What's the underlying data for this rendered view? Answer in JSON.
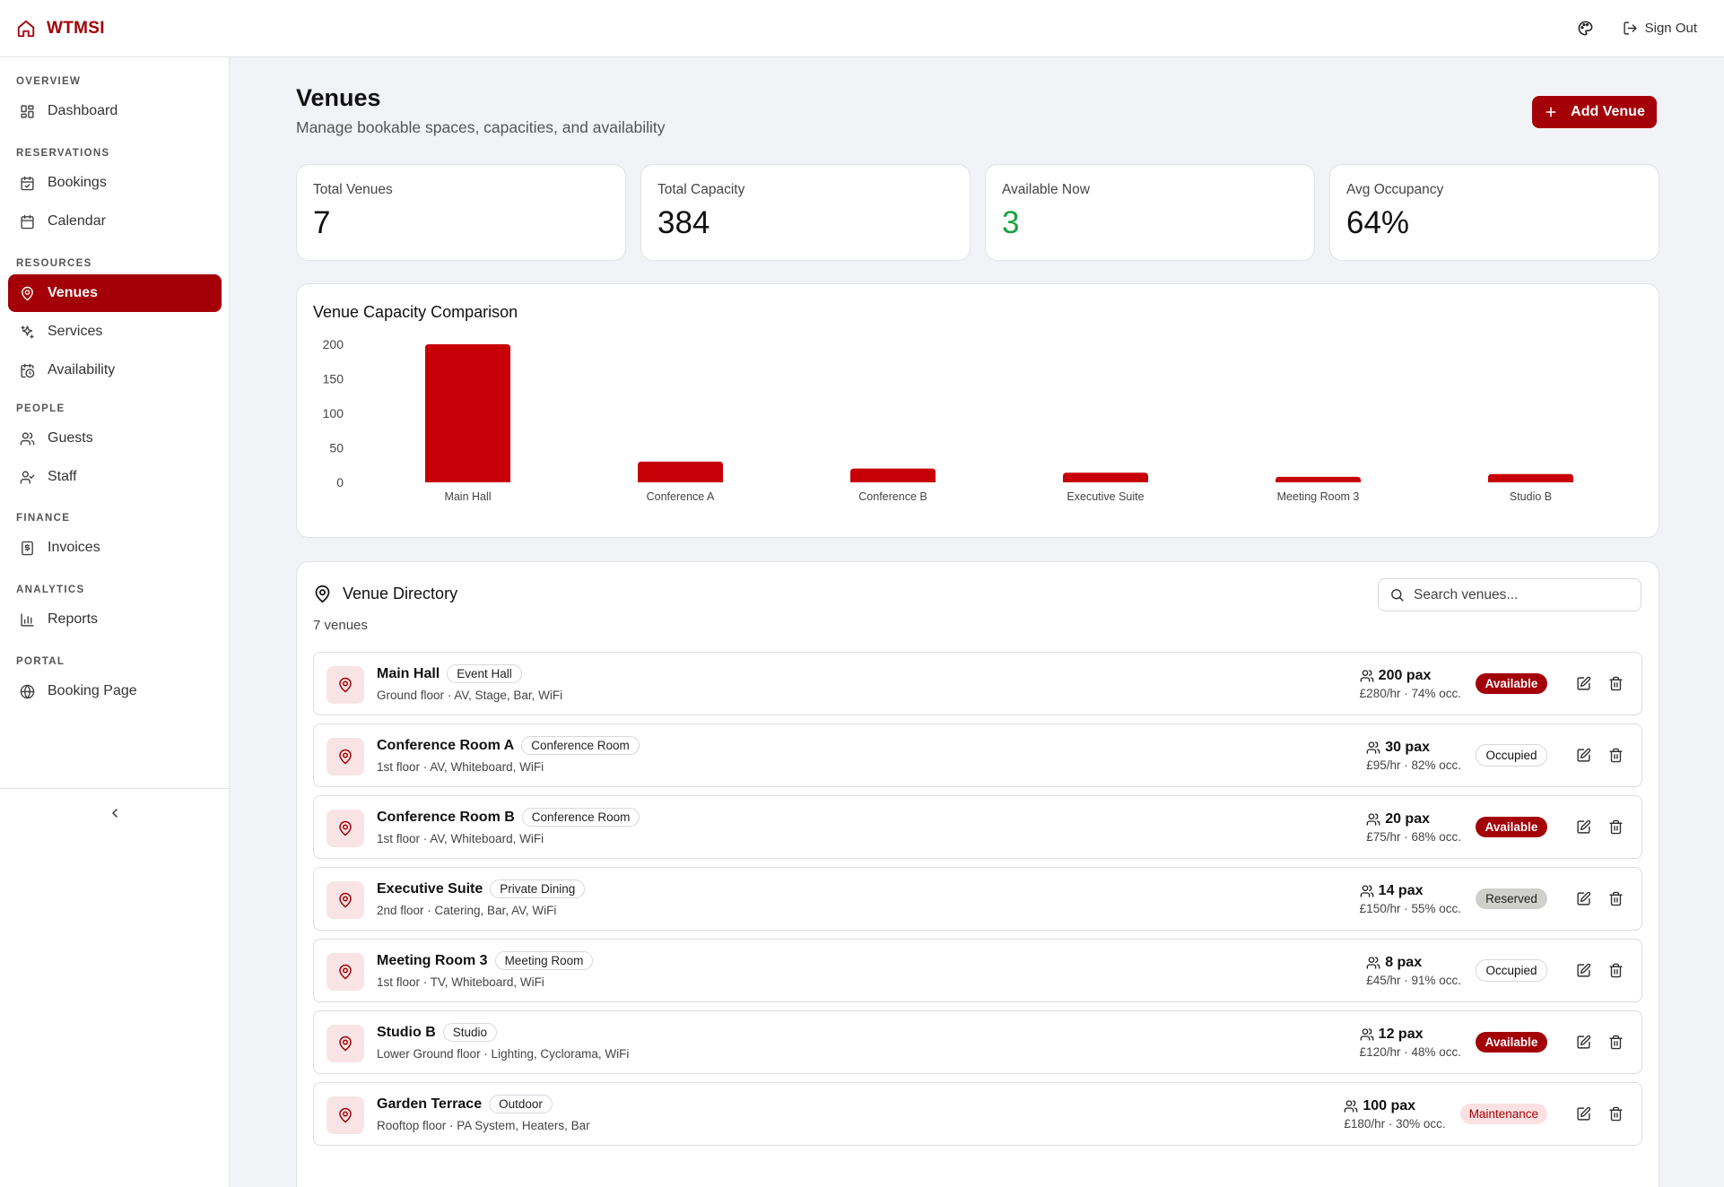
{
  "app": {
    "name": "WTMSI"
  },
  "topbar": {
    "sign_out": "Sign Out"
  },
  "sidebar": {
    "sections": [
      {
        "heading": "OVERVIEW",
        "items": [
          {
            "label": "Dashboard",
            "icon": "dashboard-icon"
          }
        ]
      },
      {
        "heading": "RESERVATIONS",
        "items": [
          {
            "label": "Bookings",
            "icon": "calendar-check-icon"
          },
          {
            "label": "Calendar",
            "icon": "calendar-icon"
          }
        ]
      },
      {
        "heading": "RESOURCES",
        "items": [
          {
            "label": "Venues",
            "icon": "map-pin-icon",
            "active": true
          },
          {
            "label": "Services",
            "icon": "sparkles-icon"
          },
          {
            "label": "Availability",
            "icon": "calendar-clock-icon"
          }
        ]
      },
      {
        "heading": "PEOPLE",
        "items": [
          {
            "label": "Guests",
            "icon": "users-icon"
          },
          {
            "label": "Staff",
            "icon": "user-check-icon"
          }
        ]
      },
      {
        "heading": "FINANCE",
        "items": [
          {
            "label": "Invoices",
            "icon": "receipt-icon"
          }
        ]
      },
      {
        "heading": "ANALYTICS",
        "items": [
          {
            "label": "Reports",
            "icon": "bar-chart-icon"
          }
        ]
      },
      {
        "heading": "PORTAL",
        "items": [
          {
            "label": "Booking Page",
            "icon": "globe-icon"
          }
        ]
      }
    ]
  },
  "page": {
    "title": "Venues",
    "subtitle": "Manage bookable spaces, capacities, and availability",
    "add_button": "Add Venue"
  },
  "stats": [
    {
      "label": "Total Venues",
      "value": "7"
    },
    {
      "label": "Total Capacity",
      "value": "384"
    },
    {
      "label": "Available Now",
      "value": "3",
      "color": "#19a33f"
    },
    {
      "label": "Avg Occupancy",
      "value": "64%"
    }
  ],
  "chart_data": {
    "type": "bar",
    "title": "Venue Capacity Comparison",
    "categories": [
      "Main Hall",
      "Conference A",
      "Conference B",
      "Executive Suite",
      "Meeting Room 3",
      "Studio B"
    ],
    "values": [
      200,
      30,
      20,
      14,
      8,
      12
    ],
    "yticks": [
      0,
      50,
      100,
      150,
      200
    ],
    "ylim": [
      0,
      200
    ],
    "xlabel": "",
    "ylabel": "",
    "grid": false,
    "bar_color": "#c70008"
  },
  "directory": {
    "title": "Venue Directory",
    "count": "7 venues",
    "search_placeholder": "Search venues...",
    "venues": [
      {
        "name": "Main Hall",
        "type": "Event Hall",
        "meta": "Ground floor · AV, Stage, Bar, WiFi",
        "pax": "200 pax",
        "rate": "£280/hr · 74% occ.",
        "status": "Available",
        "status_kind": "available"
      },
      {
        "name": "Conference Room A",
        "type": "Conference Room",
        "meta": "1st floor · AV, Whiteboard, WiFi",
        "pax": "30 pax",
        "rate": "£95/hr · 82% occ.",
        "status": "Occupied",
        "status_kind": "occupied"
      },
      {
        "name": "Conference Room B",
        "type": "Conference Room",
        "meta": "1st floor · AV, Whiteboard, WiFi",
        "pax": "20 pax",
        "rate": "£75/hr · 68% occ.",
        "status": "Available",
        "status_kind": "available"
      },
      {
        "name": "Executive Suite",
        "type": "Private Dining",
        "meta": "2nd floor · Catering, Bar, AV, WiFi",
        "pax": "14 pax",
        "rate": "£150/hr · 55% occ.",
        "status": "Reserved",
        "status_kind": "reserved"
      },
      {
        "name": "Meeting Room 3",
        "type": "Meeting Room",
        "meta": "1st floor · TV, Whiteboard, WiFi",
        "pax": "8 pax",
        "rate": "£45/hr · 91% occ.",
        "status": "Occupied",
        "status_kind": "occupied"
      },
      {
        "name": "Studio B",
        "type": "Studio",
        "meta": "Lower Ground floor · Lighting, Cyclorama, WiFi",
        "pax": "12 pax",
        "rate": "£120/hr · 48% occ.",
        "status": "Available",
        "status_kind": "available"
      },
      {
        "name": "Garden Terrace",
        "type": "Outdoor",
        "meta": "Rooftop floor · PA System, Heaters, Bar",
        "pax": "100 pax",
        "rate": "£180/hr · 30% occ.",
        "status": "Maintenance",
        "status_kind": "maintenance"
      }
    ]
  },
  "colors": {
    "brand": "#a30008",
    "background": "#f2f3f6",
    "positive": "#19a33f"
  }
}
